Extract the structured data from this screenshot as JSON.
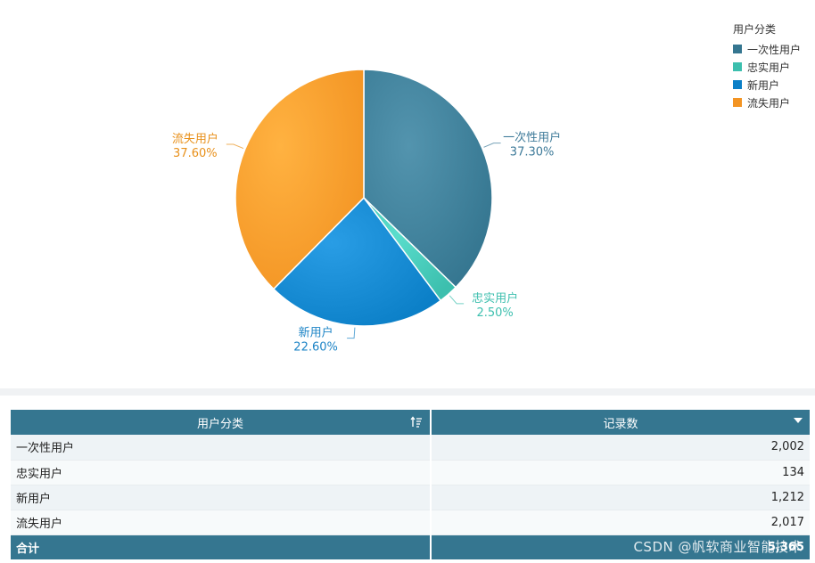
{
  "chart_data": {
    "type": "pie",
    "categories": [
      "一次性用户",
      "忠实用户",
      "新用户",
      "流失用户"
    ],
    "values": [
      37.3,
      2.5,
      22.6,
      37.6
    ],
    "percent_labels": [
      "37.30%",
      "2.50%",
      "22.60%",
      "37.60%"
    ],
    "colors": [
      "#357690",
      "#3cbfae",
      "#0b7fc7",
      "#f39423"
    ],
    "label_colors": [
      "#3d7a99",
      "#3cbfae",
      "#1d84c6",
      "#e8901a"
    ],
    "legend_title": "用户分类",
    "legend_position": "top-right"
  },
  "table": {
    "headers": [
      "用户分类",
      "记录数"
    ],
    "rows": [
      {
        "category": "一次性用户",
        "count": "2,002"
      },
      {
        "category": "忠实用户",
        "count": "134"
      },
      {
        "category": "新用户",
        "count": "1,212"
      },
      {
        "category": "流失用户",
        "count": "2,017"
      }
    ],
    "total_label": "合计",
    "total_value": "5,365"
  },
  "watermark": "CSDN @帆软商业智能技术",
  "icons": {
    "sort": "sort-icon",
    "dropdown": "dropdown-icon"
  }
}
